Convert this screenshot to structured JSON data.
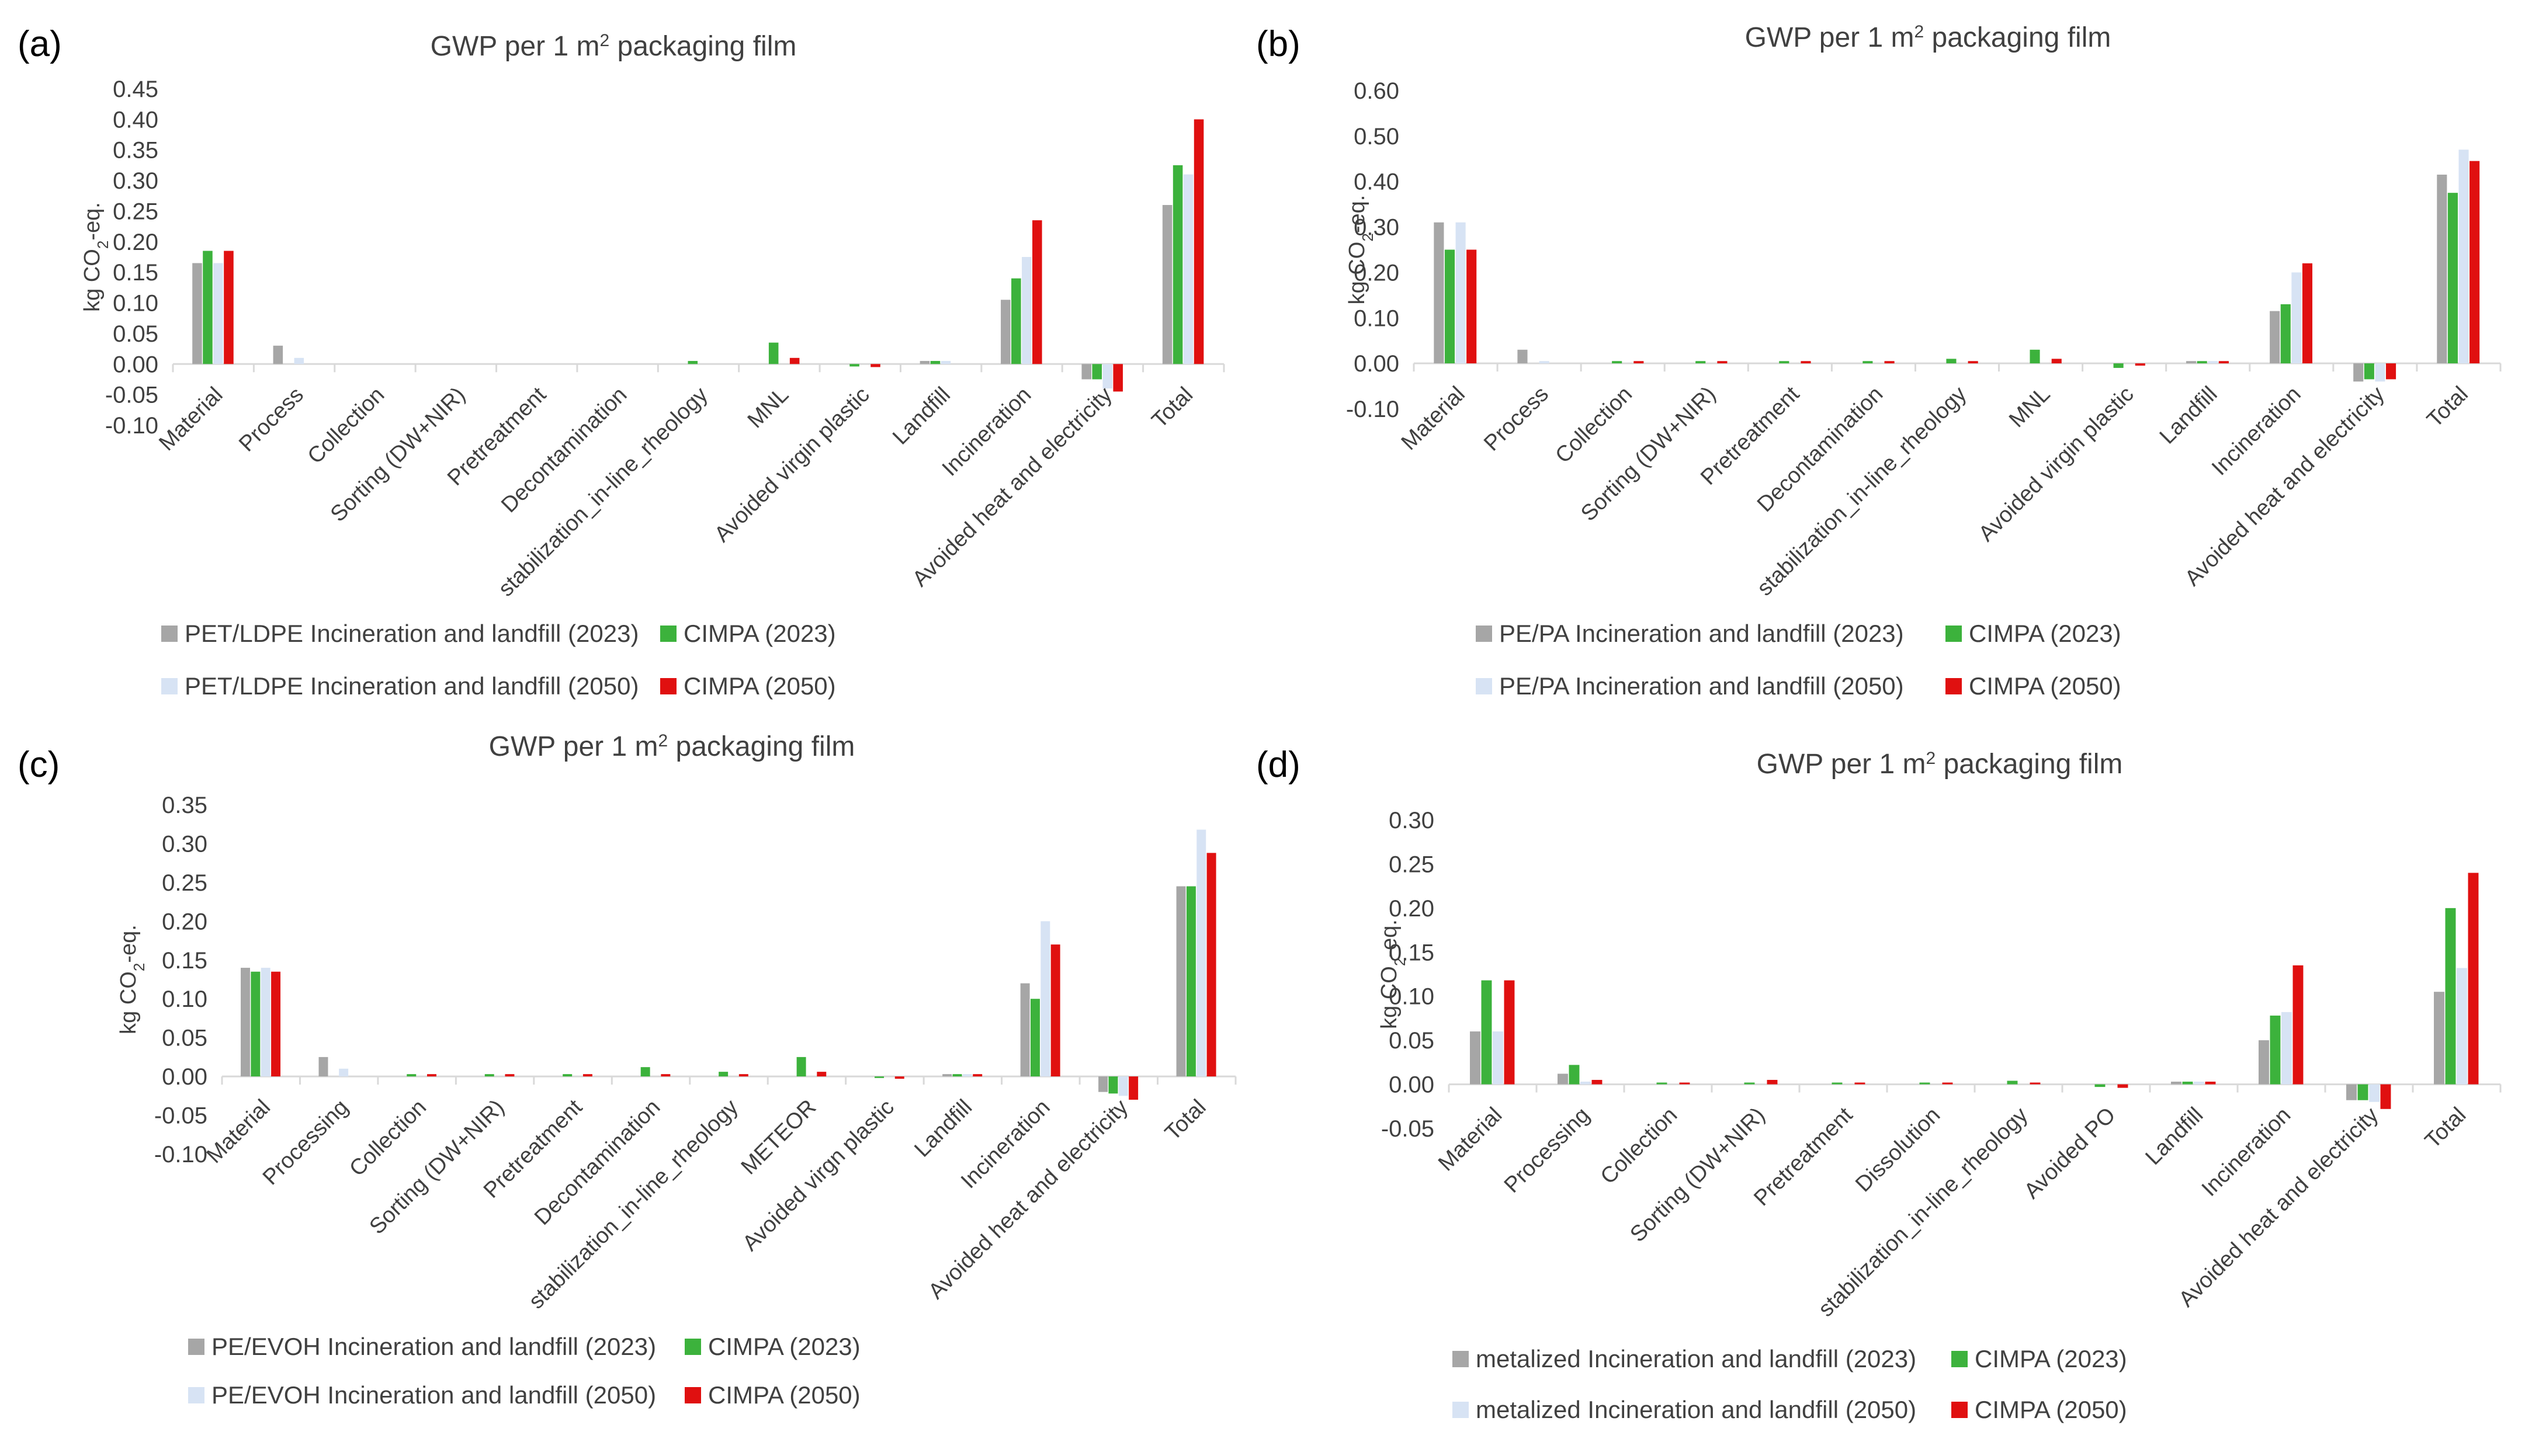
{
  "colors": {
    "legacy_2023": "#A6A6A6",
    "cimpa_2023": "#3CB23C",
    "legacy_2050": "#D7E3F4",
    "cimpa_2050": "#E01010",
    "axis": "#D9D9D9",
    "text": "#404040"
  },
  "chart_data": [
    {
      "panel": "(a)",
      "type": "bar",
      "title_prefix": "GWP per 1 m",
      "title_sup": "2",
      "title_suffix": " packaging film",
      "ylabel_prefix": "kg CO",
      "ylabel_sub": "2",
      "ylabel_suffix": "-eq.",
      "ylim": [
        -0.1,
        0.45
      ],
      "ytick_labels": [
        "-0.10",
        "-0.05",
        "0.00",
        "0.05",
        "0.10",
        "0.15",
        "0.20",
        "0.25",
        "0.30",
        "0.35",
        "0.40",
        "0.45"
      ],
      "categories": [
        "Material",
        "Process",
        "Collection",
        "Sorting (DW+NIR)",
        "Pretreatment",
        "Decontamination",
        "stabilization_in-line_rheology",
        "MNL",
        "Avoided virgin plastic",
        "Landfill",
        "Incineration",
        "Avoided heat and electricity",
        "Total"
      ],
      "series": [
        {
          "name": "PET/LDPE Incineration and landfill (2023)",
          "color_key": "legacy_2023",
          "values": [
            0.165,
            0.03,
            0,
            0,
            0,
            0,
            0,
            0,
            0,
            0.005,
            0.105,
            -0.025,
            0.26
          ]
        },
        {
          "name": "CIMPA (2023)",
          "color_key": "cimpa_2023",
          "values": [
            0.185,
            0,
            0,
            0,
            0,
            0,
            0.005,
            0.035,
            -0.004,
            0.005,
            0.14,
            -0.025,
            0.325
          ]
        },
        {
          "name": "PET/LDPE Incineration and landfill (2050)",
          "color_key": "legacy_2050",
          "values": [
            0.165,
            0.01,
            0,
            0,
            0,
            0,
            0,
            0,
            0,
            0.005,
            0.175,
            -0.04,
            0.31
          ]
        },
        {
          "name": "CIMPA (2050)",
          "color_key": "cimpa_2050",
          "values": [
            0.185,
            0,
            0,
            0,
            0,
            0,
            0,
            0.01,
            -0.005,
            0,
            0.235,
            -0.045,
            0.4
          ]
        }
      ],
      "legend": [
        "PET/LDPE Incineration and landfill (2023)",
        "CIMPA (2023)",
        "PET/LDPE Incineration and landfill (2050)",
        "CIMPA (2050)"
      ]
    },
    {
      "panel": "(b)",
      "type": "bar",
      "title_prefix": "GWP per 1 m",
      "title_sup": "2",
      "title_suffix": " packaging film",
      "ylabel_prefix": "kg CO",
      "ylabel_sub": "2",
      "ylabel_suffix": "-eq.",
      "ylim": [
        -0.1,
        0.6
      ],
      "ytick_labels": [
        "-0.10",
        "0.00",
        "0.10",
        "0.20",
        "0.30",
        "0.40",
        "0.50",
        "0.60"
      ],
      "categories": [
        "Material",
        "Process",
        "Collection",
        "Sorting (DW+NIR)",
        "Pretreatment",
        "Decontamination",
        "stabilization_in-line_rheology",
        "MNL",
        "Avoided virgin plastic",
        "Landfill",
        "Incineration",
        "Avoided heat and electricity",
        "Total"
      ],
      "series": [
        {
          "name": "PE/PA Incineration and landfill (2023)",
          "color_key": "legacy_2023",
          "values": [
            0.31,
            0.03,
            0,
            0,
            0,
            0,
            0,
            0,
            0,
            0.005,
            0.115,
            -0.04,
            0.415
          ]
        },
        {
          "name": "CIMPA (2023)",
          "color_key": "cimpa_2023",
          "values": [
            0.25,
            0,
            0.005,
            0.005,
            0.005,
            0.005,
            0.01,
            0.03,
            -0.01,
            0.005,
            0.13,
            -0.035,
            0.375
          ]
        },
        {
          "name": "PE/PA Incineration and landfill (2050)",
          "color_key": "legacy_2050",
          "values": [
            0.31,
            0.005,
            0,
            0,
            0,
            0,
            0,
            0,
            0,
            0.005,
            0.2,
            -0.04,
            0.47
          ]
        },
        {
          "name": "CIMPA (2050)",
          "color_key": "cimpa_2050",
          "values": [
            0.25,
            0,
            0.005,
            0.005,
            0.005,
            0.005,
            0.005,
            0.01,
            -0.005,
            0.005,
            0.22,
            -0.035,
            0.445
          ]
        }
      ],
      "legend": [
        "PE/PA Incineration and landfill (2023)",
        "CIMPA (2023)",
        "PE/PA Incineration and landfill (2050)",
        "CIMPA (2050)"
      ]
    },
    {
      "panel": "(c)",
      "type": "bar",
      "title_prefix": "GWP per 1 m",
      "title_sup": "2",
      "title_suffix": " packaging film",
      "ylabel_prefix": "kg CO",
      "ylabel_sub": "2",
      "ylabel_suffix": "-eq.",
      "ylim": [
        -0.1,
        0.35
      ],
      "ytick_labels": [
        "-0.10",
        "-0.05",
        "0.00",
        "0.05",
        "0.10",
        "0.15",
        "0.20",
        "0.25",
        "0.30",
        "0.35"
      ],
      "categories": [
        "Material",
        "Processing",
        "Collection",
        "Sorting (DW+NIR)",
        "Pretreatment",
        "Decontamination",
        "stabilization_in-line_rheology",
        "METEOR",
        "Avoided virgn plastic",
        "Landfill",
        "Incineration",
        "Avoided heat and electricity",
        "Total"
      ],
      "series": [
        {
          "name": "PE/EVOH Incineration and landfill (2023)",
          "color_key": "legacy_2023",
          "values": [
            0.14,
            0.025,
            0,
            0,
            0,
            0,
            0,
            0,
            0,
            0.003,
            0.12,
            -0.02,
            0.245
          ]
        },
        {
          "name": "CIMPA (2023)",
          "color_key": "cimpa_2023",
          "values": [
            0.135,
            0,
            0.003,
            0.003,
            0.003,
            0.012,
            0.006,
            0.025,
            -0.002,
            0.003,
            0.1,
            -0.022,
            0.245
          ]
        },
        {
          "name": "PE/EVOH Incineration and landfill (2050)",
          "color_key": "legacy_2050",
          "values": [
            0.14,
            0.01,
            0,
            0,
            0,
            0,
            0,
            0,
            0,
            0.003,
            0.2,
            -0.025,
            0.318
          ]
        },
        {
          "name": "CIMPA (2050)",
          "color_key": "cimpa_2050",
          "values": [
            0.135,
            0,
            0.003,
            0.003,
            0.003,
            0.003,
            0.003,
            0.006,
            -0.003,
            0.003,
            0.17,
            -0.03,
            0.288
          ]
        }
      ],
      "legend": [
        "PE/EVOH Incineration and landfill (2023)",
        "CIMPA (2023)",
        "PE/EVOH Incineration and landfill (2050)",
        "CIMPA (2050)"
      ]
    },
    {
      "panel": "(d)",
      "type": "bar",
      "title_prefix": "GWP per 1 m",
      "title_sup": "2",
      "title_suffix": " packaging film",
      "ylabel_prefix": "kg CO",
      "ylabel_sub": "2",
      "ylabel_suffix": "-eq.",
      "ylim": [
        -0.05,
        0.3
      ],
      "ytick_labels": [
        "-0.05",
        "0.00",
        "0.05",
        "0.10",
        "0.15",
        "0.20",
        "0.25",
        "0.30"
      ],
      "categories": [
        "Material",
        "Processing",
        "Collection",
        "Sorting (DW+NIR)",
        "Pretreatment",
        "Dissolution",
        "stabilization_in-line_rheology",
        "Avoided PO",
        "Landfill",
        "Incineration",
        "Avoided heat and electricity",
        "Total"
      ],
      "series": [
        {
          "name": "metalized Incineration and landfill (2023)",
          "color_key": "legacy_2023",
          "values": [
            0.06,
            0.012,
            0,
            0,
            0,
            0,
            0,
            0,
            0.003,
            0.05,
            -0.018,
            0.105
          ]
        },
        {
          "name": "CIMPA (2023)",
          "color_key": "cimpa_2023",
          "values": [
            0.118,
            0.022,
            0.002,
            0.002,
            0.002,
            0.002,
            0.004,
            -0.003,
            0.003,
            0.078,
            -0.018,
            0.2
          ]
        },
        {
          "name": "metalized Incineration and landfill (2050)",
          "color_key": "legacy_2050",
          "values": [
            0.06,
            0.003,
            0,
            0,
            0,
            0,
            0,
            0,
            0.003,
            0.082,
            -0.02,
            0.132
          ]
        },
        {
          "name": "CIMPA (2050)",
          "color_key": "cimpa_2050",
          "values": [
            0.118,
            0.005,
            0.002,
            0.005,
            0.002,
            0.002,
            0.002,
            -0.004,
            0.003,
            0.135,
            -0.028,
            0.24
          ]
        }
      ],
      "legend": [
        "metalized Incineration and landfill (2023)",
        "CIMPA (2023)",
        "metalized Incineration and landfill (2050)",
        "CIMPA (2050)"
      ]
    }
  ]
}
